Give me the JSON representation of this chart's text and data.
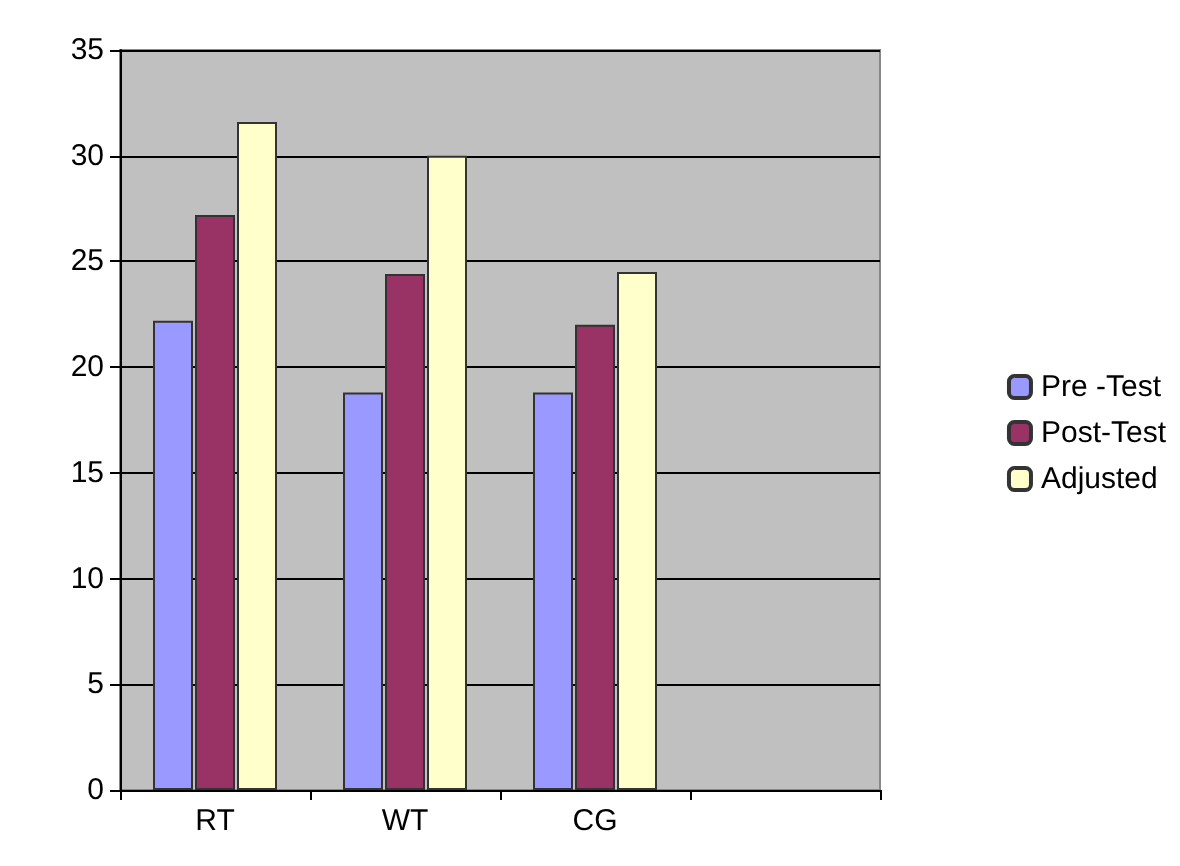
{
  "chart_data": {
    "type": "bar",
    "categories": [
      "RT",
      "WT",
      "CG",
      null
    ],
    "series": [
      {
        "name": "Pre -Test",
        "color": "#9999ff",
        "values": [
          22.2,
          18.8,
          18.8,
          null
        ]
      },
      {
        "name": "Post-Test",
        "color": "#993366",
        "values": [
          27.2,
          24.4,
          22,
          null
        ]
      },
      {
        "name": "Adjusted",
        "color": "#ffffcc",
        "values": [
          31.6,
          30,
          24.5,
          null
        ]
      }
    ],
    "ylim": [
      0,
      35
    ],
    "yticks": [
      0,
      5,
      10,
      15,
      20,
      25,
      30,
      35
    ],
    "grid": "y",
    "legend": "right"
  }
}
